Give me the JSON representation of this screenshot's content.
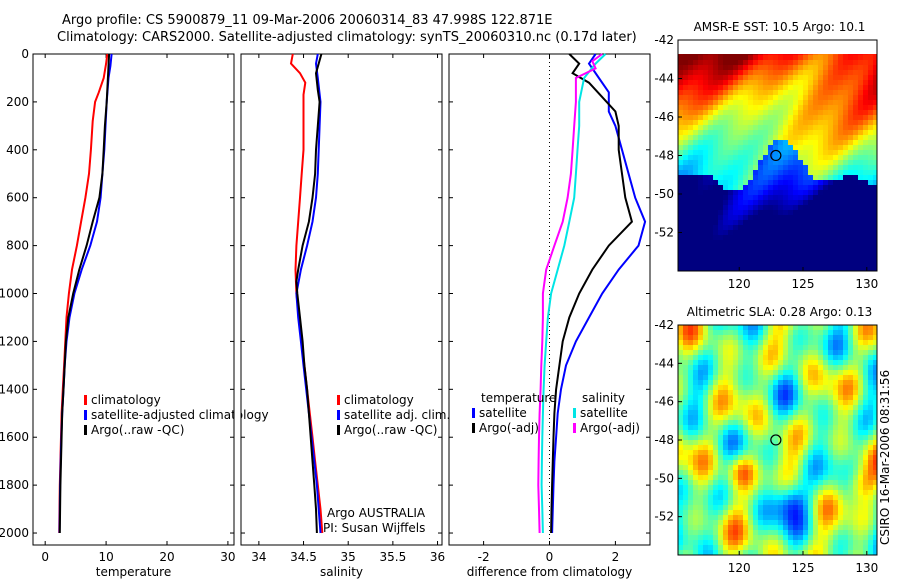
{
  "header": {
    "title_line1": "Argo profile: CS 5900879_11 09-Mar-2006 20060314_83 47.998S 122.871E",
    "title_line2": "Climatology: CARS2000. Satellite-adjusted climatology: synTS_20060310.nc (0.17d later)"
  },
  "stamp": "CSIRO 16-Mar-2006 08:31:56",
  "colors": {
    "climatology": "#ff0000",
    "satellite": "#0000ff",
    "argo": "#000000",
    "sat_diff_sal": "#00e5e5",
    "argo_diff_sal": "#ff00ff"
  },
  "chart_data": [
    {
      "type": "line",
      "xlabel": "temperature",
      "ylabel": "",
      "xlim": [
        -2,
        31
      ],
      "ylim": [
        2050,
        0
      ],
      "xticks": [
        0,
        10,
        20,
        30
      ],
      "yticks": [
        0,
        200,
        400,
        600,
        800,
        1000,
        1200,
        1400,
        1600,
        1800,
        2000
      ],
      "legend": [
        "climatology",
        "satellite-adjusted climatology",
        "Argo(..raw -QC)"
      ],
      "series": [
        {
          "name": "climatology",
          "color": "#ff0000",
          "points": [
            [
              10.2,
              0
            ],
            [
              10,
              40
            ],
            [
              9.6,
              100
            ],
            [
              8.8,
              160
            ],
            [
              8.2,
              200
            ],
            [
              7.8,
              280
            ],
            [
              7.5,
              400
            ],
            [
              7.2,
              500
            ],
            [
              6.6,
              600
            ],
            [
              5.9,
              700
            ],
            [
              5.2,
              800
            ],
            [
              4.4,
              900
            ],
            [
              3.9,
              1000
            ],
            [
              3.5,
              1100
            ],
            [
              3.3,
              1200
            ],
            [
              3.1,
              1300
            ],
            [
              2.9,
              1400
            ],
            [
              2.7,
              1500
            ],
            [
              2.6,
              1600
            ],
            [
              2.5,
              1700
            ],
            [
              2.4,
              1800
            ],
            [
              2.35,
              1900
            ],
            [
              2.3,
              2000
            ]
          ]
        },
        {
          "name": "satellite-adjusted climatology",
          "color": "#0000ff",
          "points": [
            [
              10.9,
              0
            ],
            [
              10.7,
              50
            ],
            [
              10.4,
              100
            ],
            [
              10.1,
              200
            ],
            [
              9.9,
              300
            ],
            [
              9.7,
              400
            ],
            [
              9.4,
              500
            ],
            [
              9.1,
              600
            ],
            [
              8.5,
              700
            ],
            [
              7.4,
              800
            ],
            [
              6,
              900
            ],
            [
              4.8,
              1000
            ],
            [
              4,
              1100
            ],
            [
              3.5,
              1200
            ],
            [
              3.2,
              1300
            ],
            [
              3,
              1400
            ],
            [
              2.8,
              1500
            ],
            [
              2.65,
              1600
            ],
            [
              2.55,
              1700
            ],
            [
              2.45,
              1800
            ],
            [
              2.4,
              1900
            ],
            [
              2.35,
              2000
            ]
          ]
        },
        {
          "name": "Argo(..raw -QC)",
          "color": "#000000",
          "points": [
            [
              10.5,
              0
            ],
            [
              10.4,
              50
            ],
            [
              10.3,
              100
            ],
            [
              10.1,
              200
            ],
            [
              9.8,
              300
            ],
            [
              9.6,
              400
            ],
            [
              9.4,
              500
            ],
            [
              8.9,
              600
            ],
            [
              7.8,
              700
            ],
            [
              6.8,
              800
            ],
            [
              5.6,
              900
            ],
            [
              4.6,
              1000
            ],
            [
              3.8,
              1100
            ],
            [
              3.4,
              1200
            ],
            [
              3.2,
              1300
            ],
            [
              3,
              1400
            ],
            [
              2.8,
              1500
            ],
            [
              2.7,
              1600
            ],
            [
              2.6,
              1700
            ],
            [
              2.5,
              1800
            ],
            [
              2.45,
              1900
            ],
            [
              2.4,
              2000
            ]
          ]
        }
      ]
    },
    {
      "type": "line",
      "xlabel": "salinity",
      "xlim": [
        33.8,
        36.05
      ],
      "ylim": [
        2050,
        0
      ],
      "xticks": [
        34,
        34.5,
        35,
        35.5,
        36
      ],
      "xticklabels": [
        "34",
        "34.5",
        "35",
        "35.5",
        "36"
      ],
      "legend": [
        "climatology",
        "satellite adj. clim.",
        "Argo(..raw -QC)"
      ],
      "annotation": [
        "Argo AUSTRALIA",
        "PI: Susan Wijffels"
      ],
      "series": [
        {
          "name": "climatology",
          "color": "#ff0000",
          "points": [
            [
              34.38,
              0
            ],
            [
              34.36,
              40
            ],
            [
              34.46,
              80
            ],
            [
              34.52,
              120
            ],
            [
              34.5,
              170
            ],
            [
              34.5,
              200
            ],
            [
              34.5,
              400
            ],
            [
              34.48,
              500
            ],
            [
              34.46,
              600
            ],
            [
              34.44,
              700
            ],
            [
              34.42,
              800
            ],
            [
              34.41,
              900
            ],
            [
              34.42,
              1000
            ],
            [
              34.45,
              1100
            ],
            [
              34.48,
              1200
            ],
            [
              34.51,
              1300
            ],
            [
              34.54,
              1400
            ],
            [
              34.57,
              1500
            ],
            [
              34.6,
              1600
            ],
            [
              34.63,
              1700
            ],
            [
              34.66,
              1800
            ],
            [
              34.69,
              1900
            ],
            [
              34.71,
              2000
            ]
          ]
        },
        {
          "name": "satellite adj. clim.",
          "color": "#0000ff",
          "points": [
            [
              34.66,
              0
            ],
            [
              34.64,
              40
            ],
            [
              34.66,
              100
            ],
            [
              34.69,
              200
            ],
            [
              34.68,
              300
            ],
            [
              34.67,
              400
            ],
            [
              34.66,
              500
            ],
            [
              34.64,
              600
            ],
            [
              34.6,
              700
            ],
            [
              34.54,
              800
            ],
            [
              34.47,
              900
            ],
            [
              34.42,
              1000
            ],
            [
              34.44,
              1100
            ],
            [
              34.47,
              1200
            ],
            [
              34.5,
              1300
            ],
            [
              34.53,
              1400
            ],
            [
              34.56,
              1500
            ],
            [
              34.59,
              1600
            ],
            [
              34.62,
              1700
            ],
            [
              34.65,
              1800
            ],
            [
              34.67,
              1900
            ],
            [
              34.69,
              2000
            ]
          ]
        },
        {
          "name": "Argo(..raw -QC)",
          "color": "#000000",
          "points": [
            [
              34.7,
              0
            ],
            [
              34.67,
              40
            ],
            [
              34.64,
              80
            ],
            [
              34.66,
              150
            ],
            [
              34.68,
              200
            ],
            [
              34.66,
              300
            ],
            [
              34.64,
              400
            ],
            [
              34.63,
              500
            ],
            [
              34.6,
              600
            ],
            [
              34.56,
              700
            ],
            [
              34.49,
              800
            ],
            [
              34.44,
              900
            ],
            [
              34.42,
              950
            ],
            [
              34.43,
              1000
            ],
            [
              34.46,
              1100
            ],
            [
              34.49,
              1200
            ],
            [
              34.51,
              1300
            ],
            [
              34.54,
              1400
            ],
            [
              34.56,
              1500
            ],
            [
              34.58,
              1600
            ],
            [
              34.6,
              1700
            ],
            [
              34.62,
              1800
            ],
            [
              34.64,
              1900
            ],
            [
              34.65,
              2000
            ]
          ]
        }
      ]
    },
    {
      "type": "line",
      "xlabel": "difference from climatology",
      "xlim": [
        -3.05,
        3.05
      ],
      "ylim": [
        2050,
        0
      ],
      "xticks": [
        -2,
        0,
        2
      ],
      "zero_line": 0,
      "legend_left": [
        "temperature",
        "satellite",
        "Argo(-adj)"
      ],
      "legend_right": [
        "salinity",
        "satellite",
        "Argo(-adj)"
      ],
      "series": [
        {
          "name": "satellite",
          "group": "temperature",
          "color": "#0000ff",
          "points": [
            [
              1.4,
              0
            ],
            [
              1.2,
              40
            ],
            [
              1.5,
              100
            ],
            [
              1.8,
              160
            ],
            [
              1.8,
              240
            ],
            [
              2,
              300
            ],
            [
              2.2,
              400
            ],
            [
              2.4,
              500
            ],
            [
              2.6,
              600
            ],
            [
              2.9,
              700
            ],
            [
              2.7,
              800
            ],
            [
              2.1,
              900
            ],
            [
              1.6,
              1000
            ],
            [
              1.2,
              1100
            ],
            [
              0.8,
              1200
            ],
            [
              0.5,
              1300
            ],
            [
              0.35,
              1400
            ],
            [
              0.25,
              1500
            ],
            [
              0.2,
              1600
            ],
            [
              0.15,
              1700
            ],
            [
              0.12,
              1800
            ],
            [
              0.1,
              1900
            ],
            [
              0.08,
              2000
            ]
          ]
        },
        {
          "name": "Argo(-adj)",
          "group": "temperature",
          "color": "#000000",
          "points": [
            [
              0.6,
              0
            ],
            [
              0.9,
              40
            ],
            [
              0.7,
              80
            ],
            [
              1.2,
              120
            ],
            [
              2,
              240
            ],
            [
              2.1,
              300
            ],
            [
              2.1,
              400
            ],
            [
              2.2,
              500
            ],
            [
              2.3,
              600
            ],
            [
              2.5,
              700
            ],
            [
              1.8,
              800
            ],
            [
              1.3,
              900
            ],
            [
              0.9,
              1000
            ],
            [
              0.6,
              1100
            ],
            [
              0.4,
              1200
            ],
            [
              0.3,
              1300
            ],
            [
              0.2,
              1400
            ],
            [
              0.15,
              1500
            ],
            [
              0.12,
              1600
            ],
            [
              0.1,
              1700
            ],
            [
              0.08,
              1800
            ],
            [
              0.06,
              1900
            ],
            [
              0.05,
              2000
            ]
          ]
        },
        {
          "name": "satellite",
          "group": "salinity",
          "color": "#00e5e5",
          "points": [
            [
              1.7,
              0
            ],
            [
              1.4,
              40
            ],
            [
              1.05,
              100
            ],
            [
              0.9,
              200
            ],
            [
              0.9,
              300
            ],
            [
              0.85,
              400
            ],
            [
              0.8,
              500
            ],
            [
              0.75,
              600
            ],
            [
              0.6,
              700
            ],
            [
              0.45,
              800
            ],
            [
              0.25,
              900
            ],
            [
              0.05,
              1000
            ],
            [
              -0.05,
              1100
            ],
            [
              -0.1,
              1200
            ],
            [
              -0.15,
              1300
            ],
            [
              -0.18,
              1400
            ],
            [
              -0.2,
              1500
            ],
            [
              -0.22,
              1600
            ],
            [
              -0.23,
              1700
            ],
            [
              -0.24,
              1800
            ],
            [
              -0.22,
              1900
            ],
            [
              -0.2,
              2000
            ]
          ]
        },
        {
          "name": "Argo(-adj)",
          "group": "salinity",
          "color": "#ff00ff",
          "points": [
            [
              1.6,
              0
            ],
            [
              1.3,
              30
            ],
            [
              1.4,
              60
            ],
            [
              0.8,
              100
            ],
            [
              0.8,
              200
            ],
            [
              0.75,
              300
            ],
            [
              0.7,
              400
            ],
            [
              0.65,
              500
            ],
            [
              0.55,
              600
            ],
            [
              0.4,
              700
            ],
            [
              0.15,
              800
            ],
            [
              -0.1,
              900
            ],
            [
              -0.2,
              1000
            ],
            [
              -0.2,
              1100
            ],
            [
              -0.22,
              1200
            ],
            [
              -0.25,
              1300
            ],
            [
              -0.27,
              1400
            ],
            [
              -0.3,
              1500
            ],
            [
              -0.32,
              1600
            ],
            [
              -0.33,
              1700
            ],
            [
              -0.34,
              1800
            ],
            [
              -0.32,
              1900
            ],
            [
              -0.3,
              2000
            ]
          ]
        }
      ]
    },
    {
      "type": "heatmap",
      "title": "AMSR-E SST: 10.5 Argo: 10.1",
      "xlim": [
        115.2,
        130.8
      ],
      "ylim": [
        -54,
        -42
      ],
      "xticks": [
        120,
        125,
        130
      ],
      "yticks": [
        -42,
        -44,
        -46,
        -48,
        -50,
        -52
      ],
      "marker": {
        "lon": 122.871,
        "lat": -47.998
      }
    },
    {
      "type": "heatmap",
      "title": "Altimetric SLA: 0.28 Argo: 0.13",
      "xlim": [
        115.2,
        130.8
      ],
      "ylim": [
        -54,
        -42
      ],
      "xticks": [
        120,
        125,
        130
      ],
      "yticks": [
        -42,
        -44,
        -46,
        -48,
        -50,
        -52
      ],
      "marker": {
        "lon": 122.871,
        "lat": -47.998
      }
    }
  ]
}
